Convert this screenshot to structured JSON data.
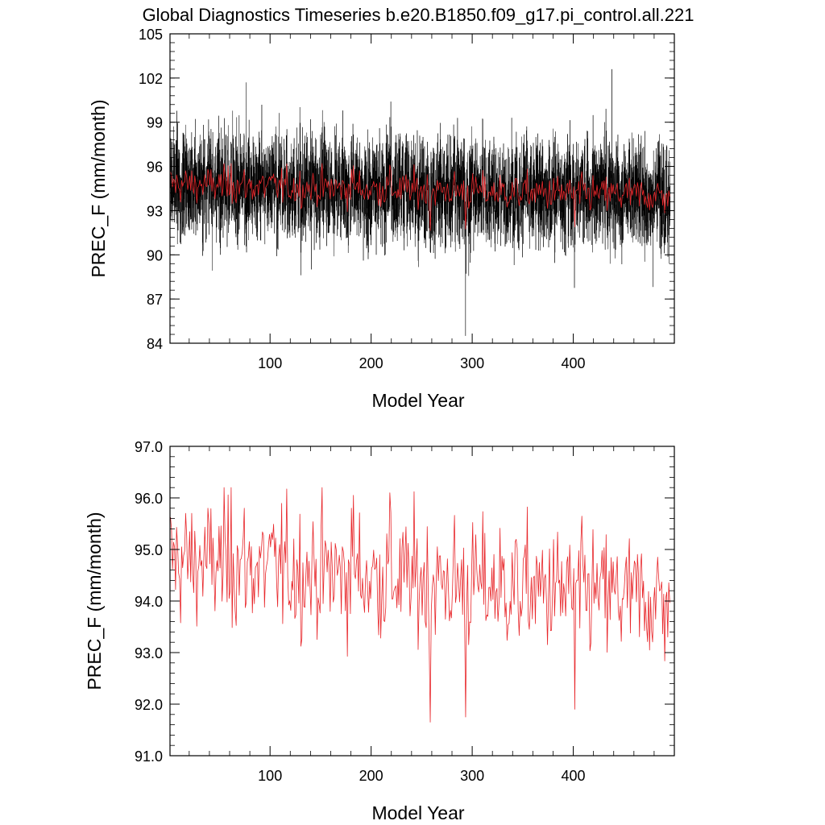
{
  "title": "Global Diagnostics Timeseries b.e20.B1850.f09_g17.pi_control.all.221",
  "colors": {
    "monthly": "#000000",
    "annual": "#e8262a",
    "axis": "#000000"
  },
  "chart_data": [
    {
      "type": "line",
      "xlabel": "Model Year",
      "ylabel": "PREC_F (mm/month)",
      "xlim": [
        1,
        500
      ],
      "ylim": [
        84,
        105
      ],
      "xticks": [
        100,
        200,
        300,
        400
      ],
      "yticks": [
        84,
        87,
        90,
        93,
        96,
        99,
        102,
        105
      ],
      "ytick_labels": [
        "84",
        "87",
        "90",
        "93",
        "96",
        "99",
        "102",
        "105"
      ],
      "grid": false,
      "series": [
        {
          "role": "monthly",
          "color": "#000000",
          "mean_start": 94.8,
          "mean_end": 94.0,
          "min": 84.5,
          "max": 102.6,
          "resolution": "monthly"
        },
        {
          "role": "annual",
          "color": "#e8262a",
          "mean_start": 94.8,
          "mean_end": 94.0,
          "resolution": "annual"
        }
      ]
    },
    {
      "type": "line",
      "xlabel": "Model Year",
      "ylabel": "PREC_F (mm/month)",
      "xlim": [
        1,
        500
      ],
      "ylim": [
        91.0,
        97.0
      ],
      "xticks": [
        100,
        200,
        300,
        400
      ],
      "yticks": [
        91,
        92,
        93,
        94,
        95,
        96,
        97
      ],
      "ytick_labels": [
        "91.0",
        "92.0",
        "93.0",
        "94.0",
        "95.0",
        "96.0",
        "97.0"
      ],
      "grid": false,
      "series": [
        {
          "role": "annual",
          "color": "#e8262a",
          "mean_start": 94.8,
          "mean_end": 94.0,
          "min": 91.65,
          "max": 96.2,
          "resolution": "annual"
        }
      ]
    }
  ]
}
